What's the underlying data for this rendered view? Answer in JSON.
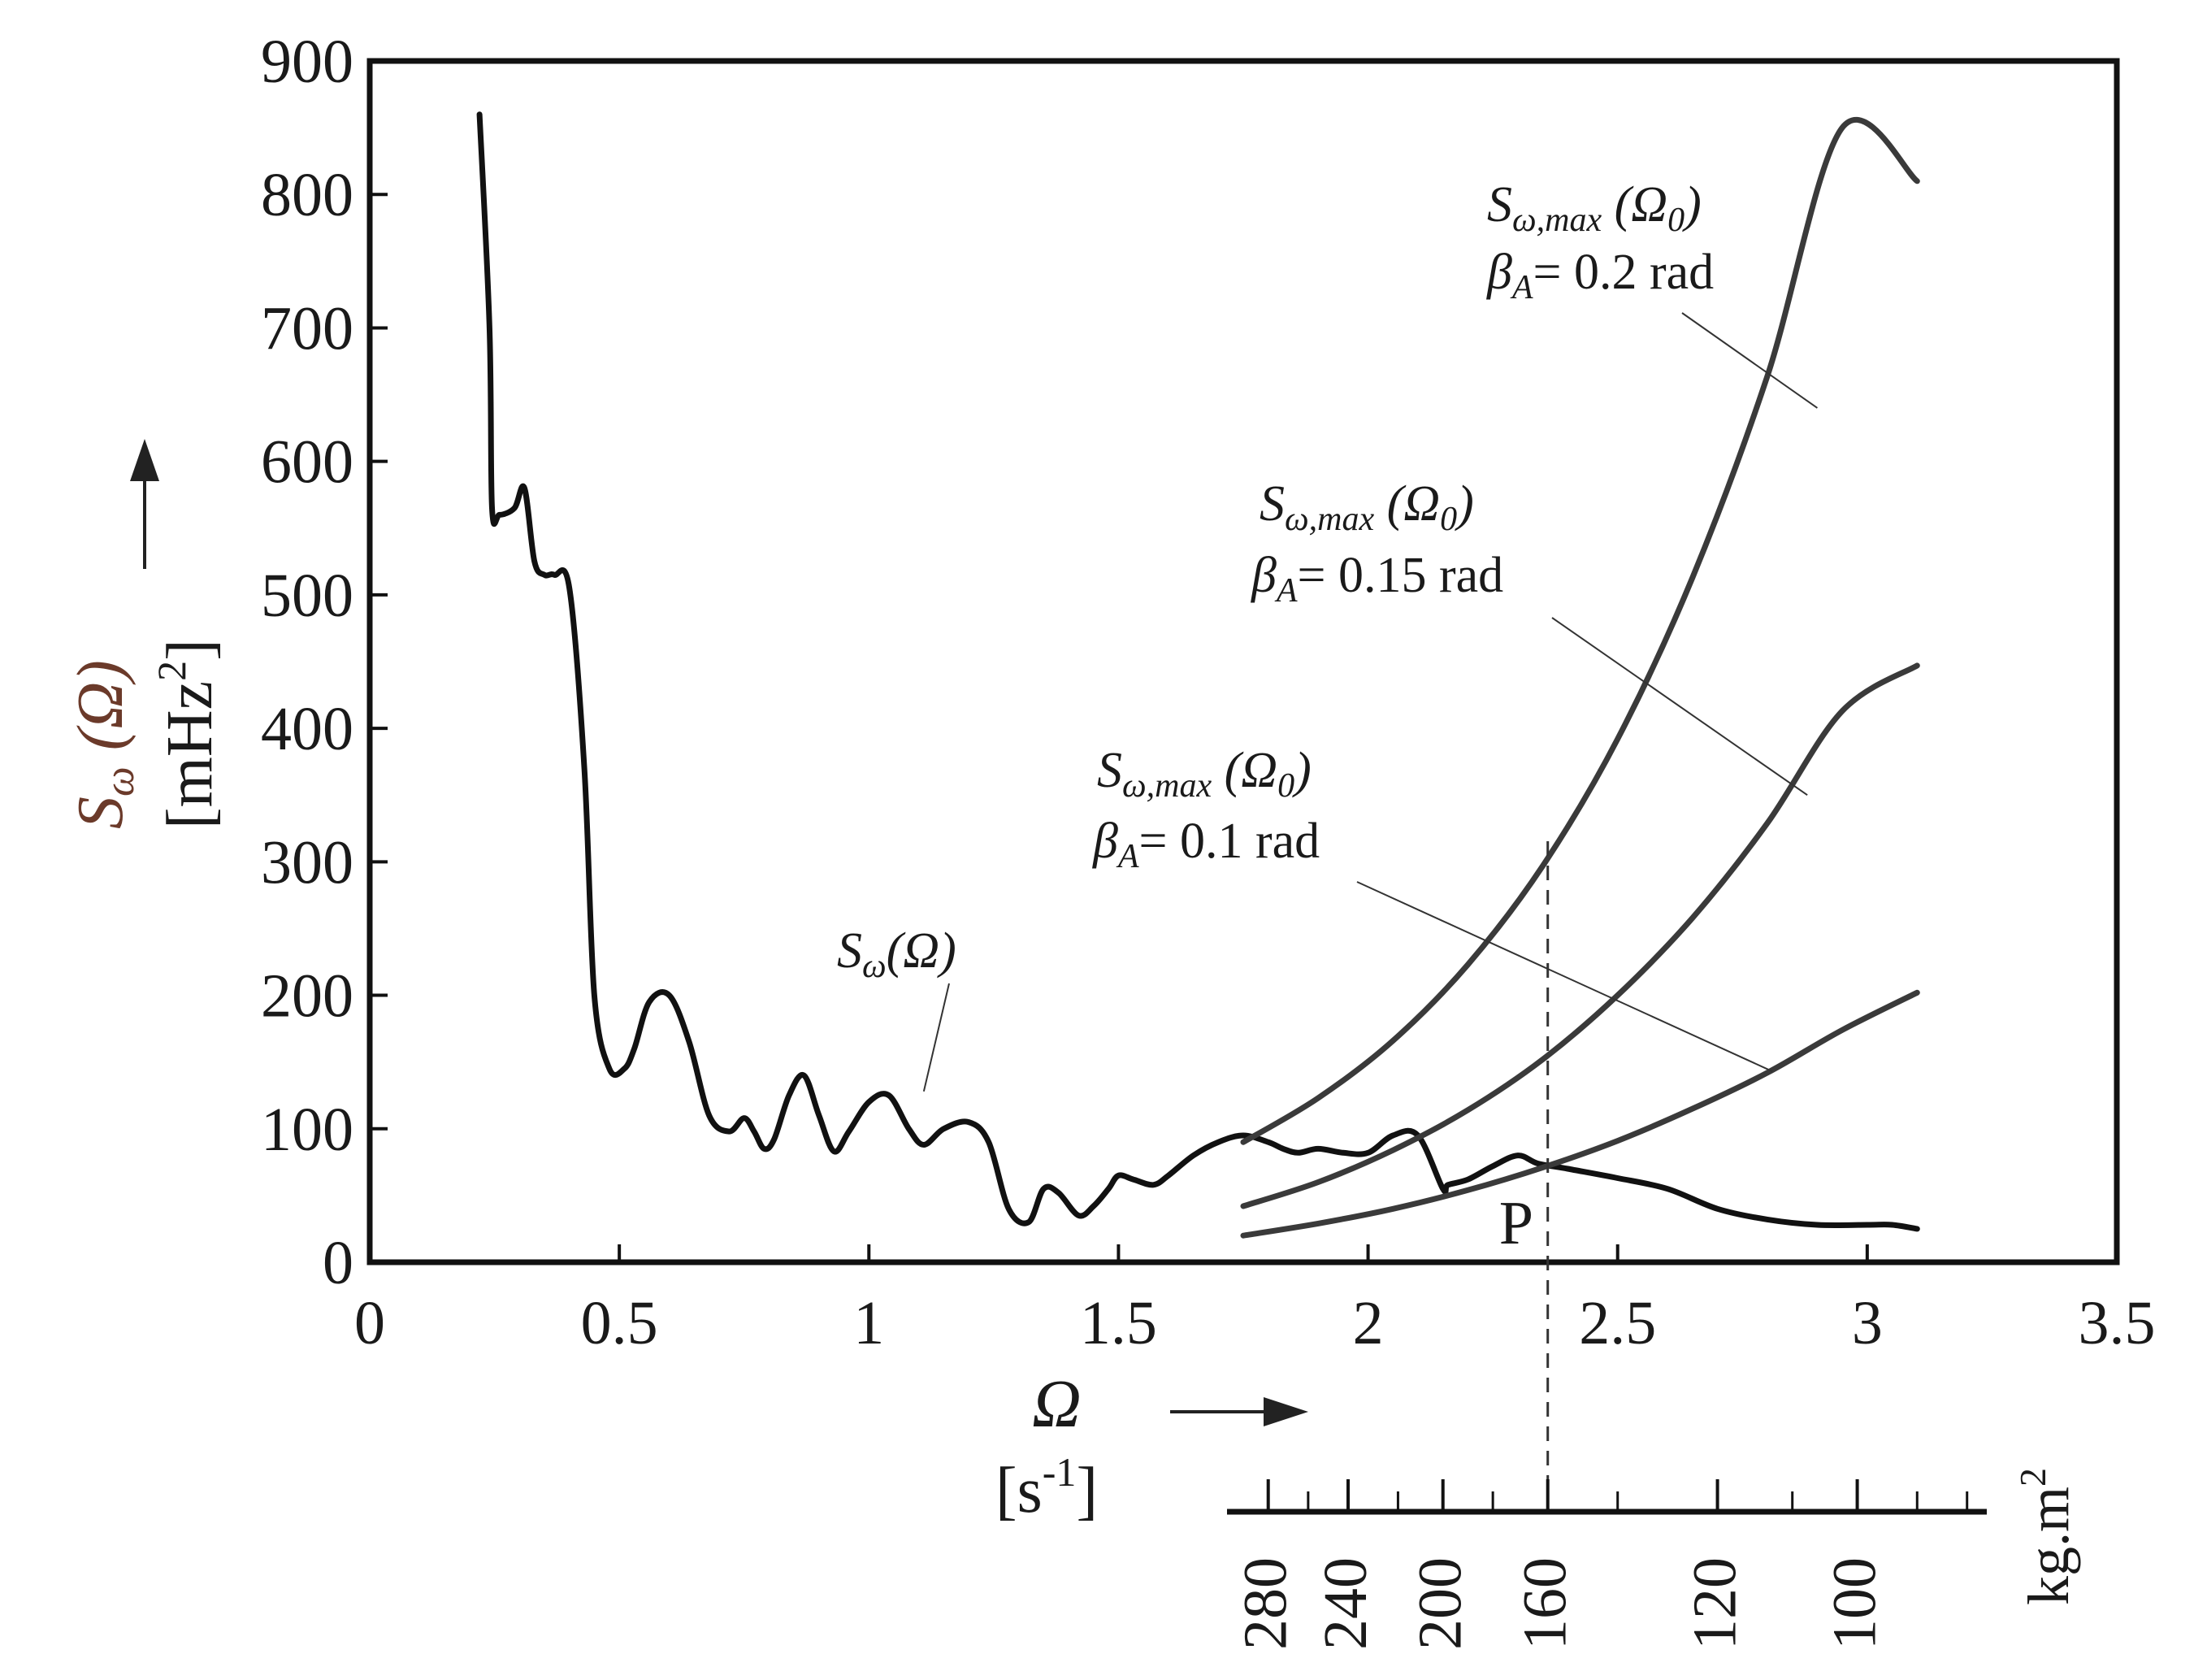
{
  "chart_data": {
    "type": "line",
    "title": "",
    "xlabel": "Ω",
    "xlabel_unit": "[s",
    "xlabel_unit_exp": "-1",
    "xlabel_unit_close": "]",
    "ylabel_main": "S",
    "ylabel_sub": "ω",
    "ylabel_arg": " (Ω)",
    "ylabel_unit": "[mHz",
    "ylabel_unit_exp": "2",
    "ylabel_unit_close": "]",
    "xlim": [
      0,
      3.5
    ],
    "ylim": [
      0,
      900
    ],
    "x_ticks": [
      "0",
      "0.5",
      "1",
      "1.5",
      "2",
      "2.5",
      "3",
      "3.5"
    ],
    "y_ticks": [
      "0",
      "100",
      "200",
      "300",
      "400",
      "500",
      "600",
      "700",
      "800",
      "900"
    ],
    "series": [
      {
        "name": "Sω(Ω)",
        "label_main": "S",
        "label_sub": "ω",
        "label_arg": "(Ω)",
        "x": [
          0.22,
          0.24,
          0.245,
          0.26,
          0.29,
          0.31,
          0.33,
          0.35,
          0.37,
          0.4,
          0.43,
          0.45,
          0.48,
          0.51,
          0.53,
          0.56,
          0.6,
          0.64,
          0.68,
          0.72,
          0.75,
          0.77,
          0.79,
          0.81,
          0.84,
          0.87,
          0.9,
          0.93,
          0.96,
          1.0,
          1.04,
          1.08,
          1.11,
          1.15,
          1.2,
          1.24,
          1.28,
          1.32,
          1.35,
          1.38,
          1.42,
          1.45,
          1.48,
          1.5,
          1.53,
          1.57,
          1.6,
          1.65,
          1.7,
          1.75,
          1.8,
          1.83,
          1.86,
          1.9,
          1.95,
          2.0,
          2.05,
          2.1,
          2.15,
          2.16,
          2.2,
          2.25,
          2.3,
          2.34,
          2.4,
          2.5,
          2.6,
          2.7,
          2.8,
          2.9,
          3.0,
          3.05,
          3.1
        ],
        "y": [
          860,
          700,
          565,
          560,
          565,
          580,
          525,
          515,
          515,
          505,
          370,
          200,
          145,
          145,
          160,
          195,
          200,
          165,
          110,
          98,
          108,
          98,
          85,
          92,
          125,
          140,
          110,
          83,
          98,
          120,
          125,
          100,
          88,
          100,
          105,
          90,
          40,
          30,
          55,
          52,
          35,
          42,
          55,
          65,
          62,
          58,
          65,
          80,
          90,
          95,
          90,
          85,
          82,
          85,
          82,
          82,
          95,
          95,
          55,
          58,
          62,
          72,
          80,
          74,
          70,
          63,
          55,
          40,
          32,
          28,
          28,
          28,
          25
        ]
      },
      {
        "name": "Sω,max(Ω0) βA = 0.2 rad",
        "x": [
          1.75,
          1.9,
          2.05,
          2.2,
          2.35,
          2.5,
          2.65,
          2.8,
          2.95,
          3.1
        ],
        "y": [
          90,
          123,
          166,
          223,
          297,
          392,
          513,
          664,
          850,
          810
        ]
      },
      {
        "name": "Sω,max(Ω0) βA = 0.15 rad",
        "x": [
          1.75,
          1.9,
          2.05,
          2.2,
          2.35,
          2.5,
          2.65,
          2.8,
          2.95,
          3.1
        ],
        "y": [
          42,
          60,
          84,
          114,
          152,
          200,
          258,
          329,
          413,
          447
        ]
      },
      {
        "name": "Sω,max(Ω0) βA = 0.1 rad",
        "x": [
          1.75,
          1.9,
          2.05,
          2.2,
          2.35,
          2.5,
          2.65,
          2.8,
          2.95,
          3.1
        ],
        "y": [
          20,
          29,
          40,
          54,
          71,
          91,
          115,
          142,
          174,
          202
        ]
      }
    ],
    "annotations": [
      {
        "main": "S",
        "sub": "ω,max",
        "arg": " (Ω",
        "arg_sub": "0",
        "close": ")",
        "beta_main": "β",
        "beta_sub": "A",
        "beta_value": "= 0.2 rad"
      },
      {
        "main": "S",
        "sub": "ω,max",
        "arg": " (Ω",
        "arg_sub": "0",
        "close": ")",
        "beta_main": "β",
        "beta_sub": "A",
        "beta_value": "= 0.15 rad"
      },
      {
        "main": "S",
        "sub": "ω,max",
        "arg": " (Ω",
        "arg_sub": "0",
        "close": ")",
        "beta_main": "β",
        "beta_sub": "A",
        "beta_value": "= 0.1 rad"
      }
    ],
    "point_label": "P",
    "point_x": 2.36,
    "secondary_axis": {
      "unit": "kg.m",
      "unit_exp": "2",
      "ticks": [
        {
          "label": "280",
          "omega": 1.8
        },
        {
          "label": "240",
          "omega": 1.96
        },
        {
          "label": "200",
          "omega": 2.15
        },
        {
          "label": "160",
          "omega": 2.36
        },
        {
          "label": "120",
          "omega": 2.7
        },
        {
          "label": "100",
          "omega": 2.98
        }
      ]
    }
  }
}
